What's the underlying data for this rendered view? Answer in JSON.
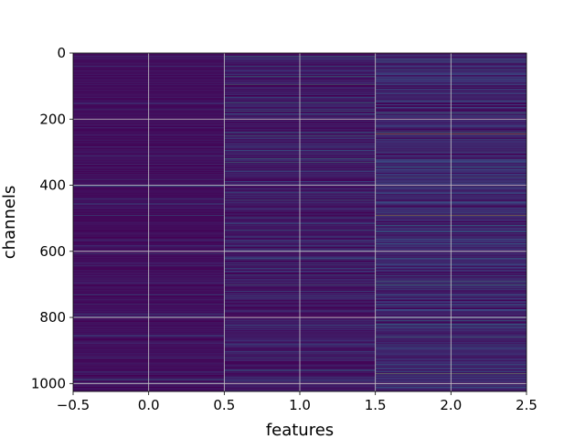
{
  "chart_data": {
    "type": "heatmap",
    "title": "",
    "xlabel": "features",
    "ylabel": "channels",
    "xlim": [
      -0.5,
      2.5
    ],
    "ylim": [
      1024,
      0
    ],
    "y_inverted": true,
    "grid": true,
    "colormap": "viridis",
    "columns": 3,
    "rows": 1024,
    "column_centers": [
      0,
      1,
      2
    ],
    "x_ticks": [
      -0.5,
      0.0,
      0.5,
      1.0,
      1.5,
      2.0,
      2.5
    ],
    "x_tick_labels": [
      "−0.5",
      "0.0",
      "0.5",
      "1.0",
      "1.5",
      "2.0",
      "2.5"
    ],
    "y_ticks": [
      0,
      200,
      400,
      600,
      800,
      1000
    ],
    "y_tick_labels": [
      "0",
      "200",
      "400",
      "600",
      "800",
      "1000"
    ],
    "column_typical_level": [
      0.05,
      0.08,
      0.12
    ],
    "bright_rows": [
      {
        "column": 1,
        "rows": [
          10,
          40,
          70,
          95,
          150,
          175,
          240,
          250,
          320,
          330,
          445,
          535,
          700,
          960
        ]
      },
      {
        "column": 2,
        "rows": [
          20,
          50,
          110,
          180,
          240,
          245,
          330,
          345,
          375,
          490,
          540,
          620,
          690,
          700,
          810,
          820,
          860,
          965,
          970,
          1010
        ]
      }
    ],
    "peak_rows": [
      {
        "column": 2,
        "row": 245,
        "level": 0.95
      },
      {
        "column": 2,
        "row": 490,
        "level": 0.9
      },
      {
        "column": 2,
        "row": 970,
        "level": 0.85
      }
    ]
  }
}
